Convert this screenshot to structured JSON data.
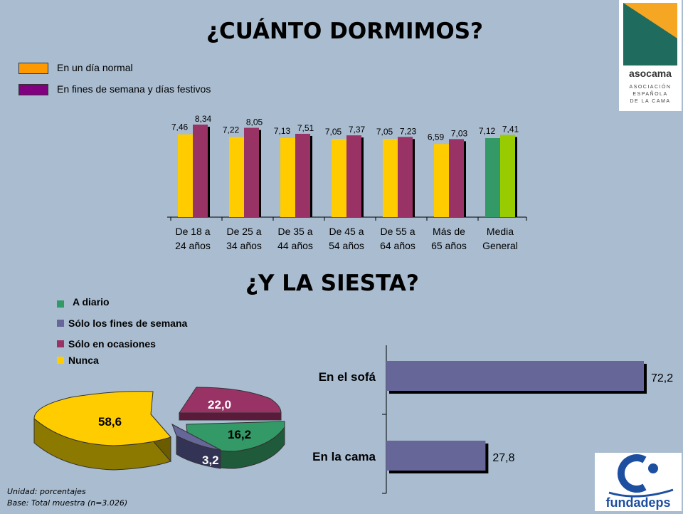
{
  "title": "¿CUÁNTO DORMIMOS?",
  "subtitle": "¿Y LA SIESTA?",
  "logos": {
    "top_right": "asocama",
    "top_right_lines": [
      "ASOCIACIÓN",
      "ESPAÑOLA",
      "DE LA CAMA"
    ],
    "bottom_right": "fundadeps"
  },
  "colors": {
    "background": "#a9bcd0",
    "weekday": "#ffcc00",
    "weekend": "#993366",
    "media_weekday": "#339966",
    "media_weekend": "#99cc00",
    "siesta_bar": "#666699"
  },
  "footnote": {
    "line1": "Unidad: porcentajes",
    "line2": "Base: Total muestra (n=3.026)"
  },
  "chart_data": [
    {
      "type": "bar",
      "legend": [
        "En un día normal",
        "En fines de semana y días festivos"
      ],
      "legend_swatches": [
        "#ff9900",
        "#800080"
      ],
      "categories": [
        [
          "De 18 a",
          "24 años"
        ],
        [
          "De 25 a",
          "34 años"
        ],
        [
          "De  35 a",
          "44 años"
        ],
        [
          "De 45 a",
          "54 años"
        ],
        [
          "De 55 a",
          "64 años"
        ],
        [
          "Más de",
          "65 años"
        ],
        [
          "Media",
          "General"
        ]
      ],
      "series": [
        {
          "name": "En un día normal",
          "values": [
            7.46,
            7.22,
            7.13,
            7.05,
            7.05,
            6.59,
            7.12
          ],
          "labels": [
            "7,46",
            "7,22",
            "7,13",
            "7,05",
            "7,05",
            "6,59",
            "7,12"
          ]
        },
        {
          "name": "En fines de semana y días festivos",
          "values": [
            8.34,
            8.05,
            7.51,
            7.37,
            7.23,
            7.03,
            7.41
          ],
          "labels": [
            "8,34",
            "8,05",
            "7,51",
            "7,37",
            "7,23",
            "7,03",
            "7,41"
          ]
        }
      ],
      "grid": false
    },
    {
      "type": "pie",
      "legend": [
        "A diario",
        "Sólo los fines de semana",
        "Sólo en ocasiones",
        "Nunca"
      ],
      "legend_colors": [
        "#339966",
        "#666699",
        "#993366",
        "#ffcc00"
      ],
      "slices": [
        {
          "name": "A diario",
          "value": 16.2,
          "label": "16,2",
          "color": "#339966"
        },
        {
          "name": "Sólo los fines de semana",
          "value": 3.2,
          "label": "3,2",
          "color": "#666699"
        },
        {
          "name": "Sólo en ocasiones",
          "value": 22.0,
          "label": "22,0",
          "color": "#993366"
        },
        {
          "name": "Nunca",
          "value": 58.6,
          "label": "58,6",
          "color": "#ffcc00"
        }
      ]
    },
    {
      "type": "bar",
      "orientation": "horizontal",
      "categories": [
        "En el sofá",
        "En la cama"
      ],
      "values": [
        72.2,
        27.8
      ],
      "labels": [
        "72,2",
        "27,8"
      ],
      "xlim": [
        0,
        80
      ]
    }
  ]
}
